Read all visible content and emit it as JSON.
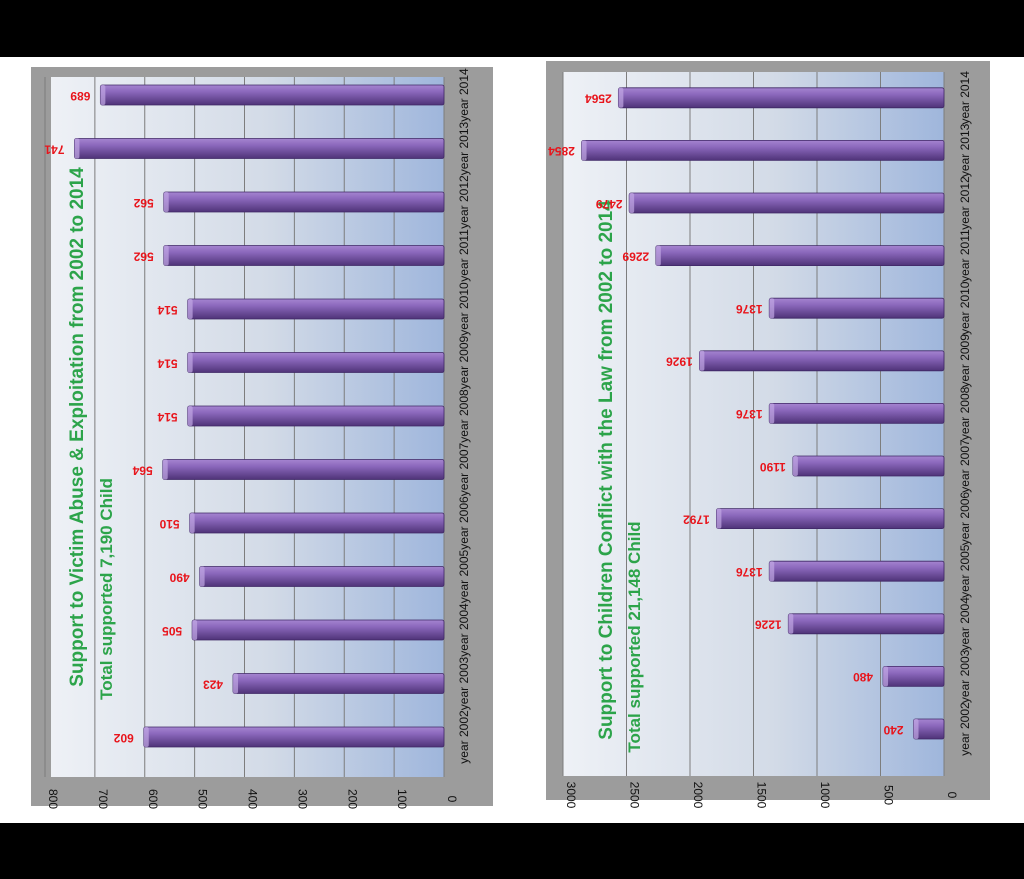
{
  "chart_data": [
    {
      "type": "bar",
      "orientation": "horizontal",
      "rotated": "90deg clockwise",
      "title": "Support to Victim Abuse & Exploitation from 2002 to 2014",
      "subtitle": "Total supported 7,190 Child",
      "categories": [
        "year 2002",
        "year 2003",
        "year 2004",
        "year 2005",
        "year 2006",
        "year 2007",
        "year 2008",
        "year 2009",
        "year 2010",
        "year 2011",
        "year 2012",
        "year 2013",
        "year 2014"
      ],
      "values": [
        602,
        423,
        505,
        490,
        510,
        564,
        514,
        514,
        514,
        562,
        562,
        741,
        689
      ],
      "ylim": [
        0,
        800
      ],
      "yticks": [
        "0",
        "100",
        "200",
        "300",
        "400",
        "500",
        "600",
        "700",
        "800"
      ],
      "grid": true
    },
    {
      "type": "bar",
      "orientation": "horizontal",
      "rotated": "90deg clockwise",
      "title": "Support to Children Conflict with the Law from 2002 to 2014",
      "subtitle": "Total supported 21,148 Child",
      "categories": [
        "year 2002",
        "year 2003",
        "year 2004",
        "year 2005",
        "year 2006",
        "year 2007",
        "year 2008",
        "year 2009",
        "year 2010",
        "year 2011",
        "year 2012",
        "year 2013",
        "year 2014"
      ],
      "values": [
        240,
        480,
        1226,
        1376,
        1792,
        1190,
        1376,
        1926,
        1376,
        2269,
        2479,
        2854,
        2564
      ],
      "ylim": [
        0,
        3000
      ],
      "yticks": [
        "0",
        "500",
        "1000",
        "1500",
        "2000",
        "2500",
        "3000"
      ],
      "grid": true
    }
  ],
  "colors": {
    "bar_fill": "#7d5bab",
    "bar_dark": "#4f3378",
    "bar_light": "#a584d0",
    "value_label": "#e8141b",
    "title": "#2ca44a"
  }
}
